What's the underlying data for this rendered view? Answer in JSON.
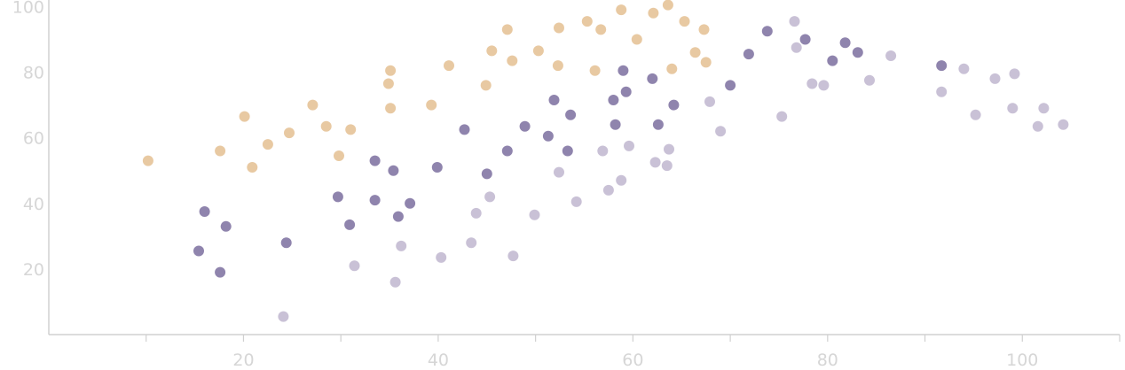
{
  "chart_data": {
    "type": "scatter",
    "title": "",
    "xlabel": "",
    "ylabel": "",
    "xlim": [
      0,
      110
    ],
    "ylim": [
      0,
      102
    ],
    "xticks": [
      10,
      20,
      30,
      40,
      50,
      60,
      70,
      80,
      90,
      100,
      110
    ],
    "xtick_labels": [
      {
        "value": 20,
        "label": "20"
      },
      {
        "value": 40,
        "label": "40"
      },
      {
        "value": 60,
        "label": "60"
      },
      {
        "value": 80,
        "label": "80"
      },
      {
        "value": 100,
        "label": "100"
      }
    ],
    "ytick_labels": [
      {
        "value": 20,
        "label": "20"
      },
      {
        "value": 40,
        "label": "40"
      },
      {
        "value": 60,
        "label": "60"
      },
      {
        "value": 80,
        "label": "80"
      },
      {
        "value": 100,
        "label": "100"
      }
    ],
    "grid": false,
    "legend": "none",
    "series": [
      {
        "color": "#e8c9a2",
        "points": [
          [
            10.2,
            53
          ],
          [
            17.6,
            56
          ],
          [
            20.1,
            66.5
          ],
          [
            20.9,
            51
          ],
          [
            22.5,
            58
          ],
          [
            24.7,
            61.5
          ],
          [
            27.1,
            70
          ],
          [
            28.5,
            63.5
          ],
          [
            29.8,
            54.5
          ],
          [
            31,
            62.5
          ],
          [
            34.9,
            76.5
          ],
          [
            35.1,
            69
          ],
          [
            35.1,
            80.5
          ],
          [
            39.3,
            70
          ],
          [
            41.1,
            82
          ],
          [
            44.9,
            76
          ],
          [
            45.5,
            86.5
          ],
          [
            47.1,
            93
          ],
          [
            47.6,
            83.5
          ],
          [
            50.3,
            86.5
          ],
          [
            52.3,
            82
          ],
          [
            52.4,
            93.5
          ],
          [
            55.3,
            95.5
          ],
          [
            56.1,
            80.5
          ],
          [
            56.7,
            93
          ],
          [
            58.8,
            99
          ],
          [
            60.4,
            90
          ],
          [
            62.1,
            98
          ],
          [
            63.6,
            100.5
          ],
          [
            64,
            81
          ],
          [
            65.3,
            95.5
          ],
          [
            66.4,
            86
          ],
          [
            67.3,
            93
          ],
          [
            67.5,
            83
          ]
        ]
      },
      {
        "color": "#8f84ad",
        "points": [
          [
            15.4,
            25.5
          ],
          [
            16,
            37.5
          ],
          [
            17.6,
            19
          ],
          [
            18.2,
            33
          ],
          [
            24.4,
            28
          ],
          [
            29.7,
            42
          ],
          [
            30.9,
            33.5
          ],
          [
            33.5,
            53
          ],
          [
            33.5,
            41
          ],
          [
            35.4,
            50
          ],
          [
            35.9,
            36
          ],
          [
            37.1,
            40
          ],
          [
            39.9,
            51
          ],
          [
            42.7,
            62.5
          ],
          [
            45,
            49
          ],
          [
            47.1,
            56
          ],
          [
            48.9,
            63.5
          ],
          [
            51.3,
            60.5
          ],
          [
            51.9,
            71.5
          ],
          [
            53.3,
            56
          ],
          [
            53.6,
            67
          ],
          [
            58,
            71.5
          ],
          [
            58.2,
            64
          ],
          [
            59,
            80.5
          ],
          [
            59.3,
            74
          ],
          [
            62,
            78
          ],
          [
            62.6,
            64
          ],
          [
            64.2,
            70
          ],
          [
            70,
            76
          ],
          [
            71.9,
            85.5
          ],
          [
            73.8,
            92.5
          ],
          [
            77.7,
            90
          ],
          [
            80.5,
            83.5
          ],
          [
            81.8,
            89
          ],
          [
            83.1,
            86
          ],
          [
            91.7,
            82
          ]
        ]
      },
      {
        "color": "#c9c1d6",
        "points": [
          [
            24.1,
            5.5
          ],
          [
            31.4,
            21
          ],
          [
            35.6,
            16
          ],
          [
            36.2,
            27
          ],
          [
            40.3,
            23.5
          ],
          [
            43.4,
            28
          ],
          [
            43.9,
            37
          ],
          [
            45.3,
            42
          ],
          [
            47.7,
            24
          ],
          [
            49.9,
            36.5
          ],
          [
            52.4,
            49.5
          ],
          [
            54.2,
            40.5
          ],
          [
            56.9,
            56
          ],
          [
            57.5,
            44
          ],
          [
            58.8,
            47
          ],
          [
            59.6,
            57.5
          ],
          [
            62.3,
            52.5
          ],
          [
            63.5,
            51.5
          ],
          [
            63.7,
            56.5
          ],
          [
            67.9,
            71
          ],
          [
            69,
            62
          ],
          [
            75.3,
            66.5
          ],
          [
            76.6,
            95.5
          ],
          [
            76.8,
            87.5
          ],
          [
            78.4,
            76.5
          ],
          [
            79.6,
            76
          ],
          [
            84.3,
            77.5
          ],
          [
            86.5,
            85
          ],
          [
            91.7,
            74
          ],
          [
            94,
            81
          ],
          [
            95.2,
            67
          ],
          [
            97.2,
            78
          ],
          [
            99,
            69
          ],
          [
            99.2,
            79.5
          ],
          [
            101.6,
            63.5
          ],
          [
            102.2,
            69
          ],
          [
            104.2,
            64
          ]
        ]
      }
    ]
  }
}
